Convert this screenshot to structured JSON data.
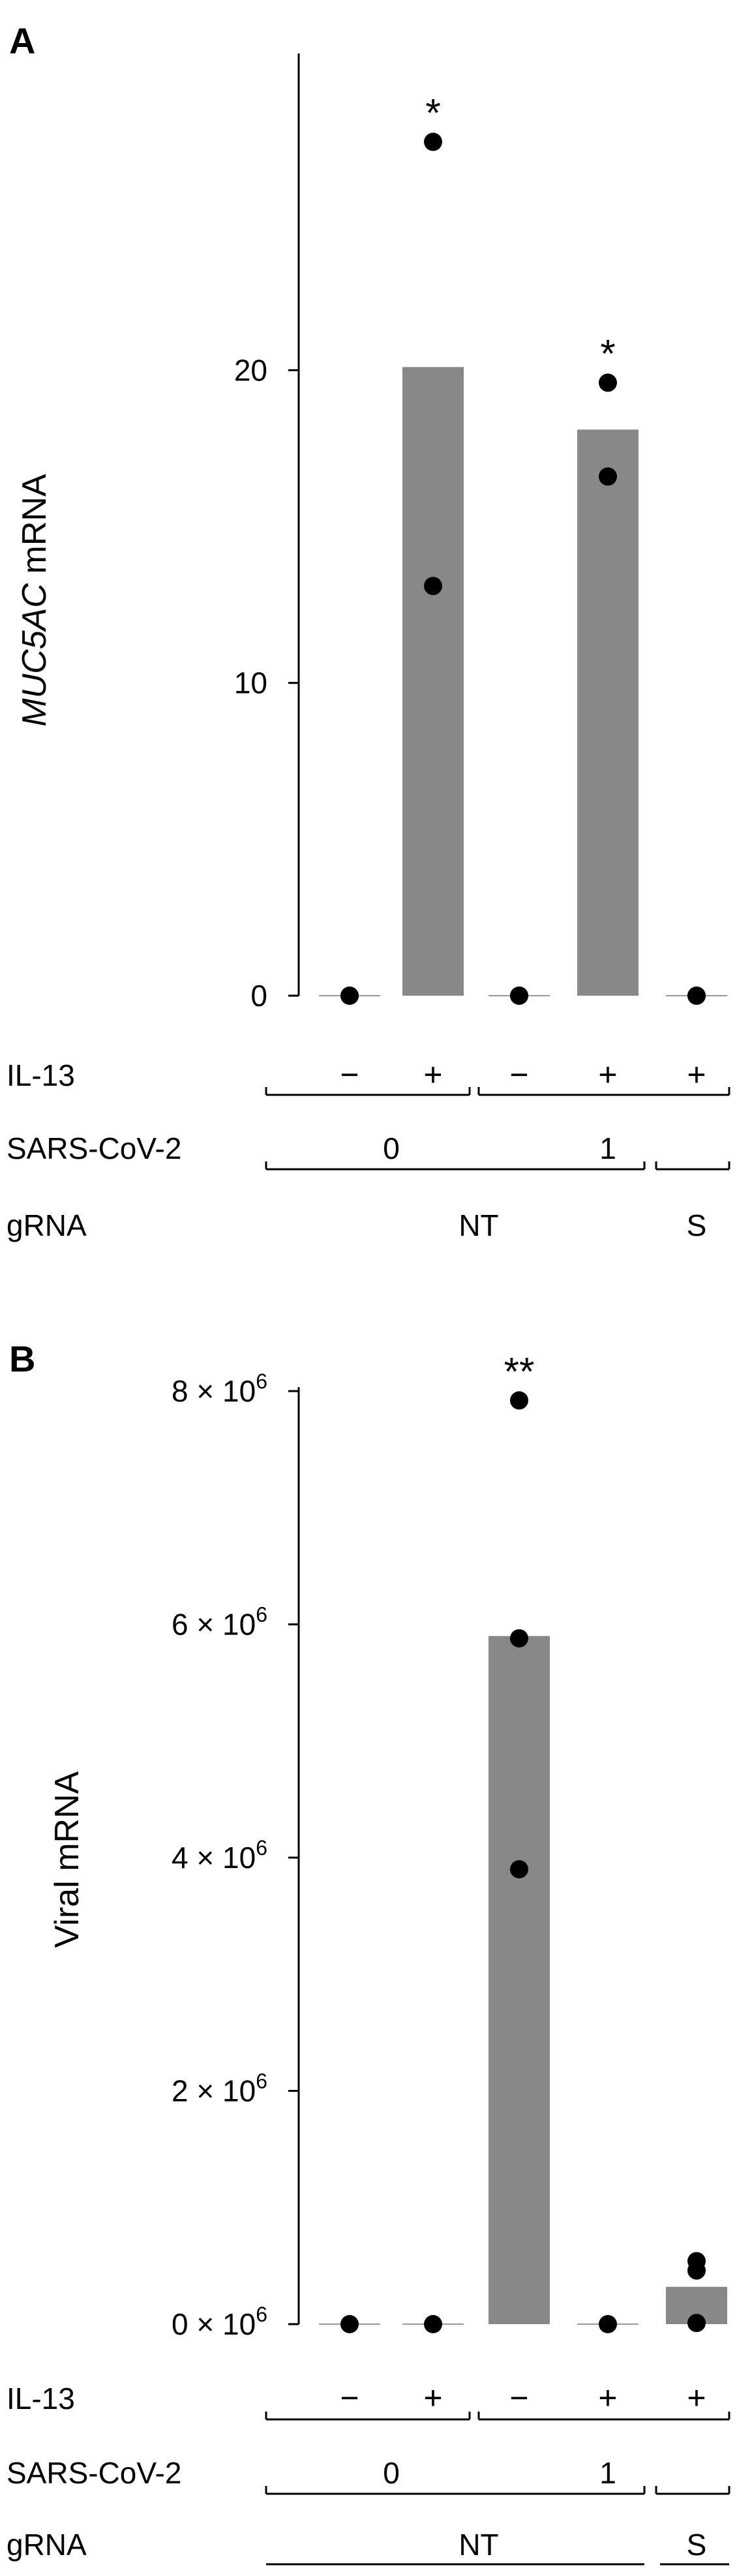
{
  "chart_data": [
    {
      "type": "bar",
      "panel": "A",
      "ylabel_italic": "MUC5AC",
      "ylabel_rest": " mRNA",
      "ylim": [
        0,
        30
      ],
      "yticks": [
        {
          "value": 0,
          "label": "0"
        },
        {
          "value": 10,
          "label": "10"
        },
        {
          "value": 20,
          "label": "20"
        }
      ],
      "categories": [
        "NT / 0 / −",
        "NT / 0 / +",
        "NT / 1 / −",
        "NT / 1 / +",
        "S / 1 / +"
      ],
      "bar_color": "#888888",
      "values": [
        0,
        20.1,
        0,
        18.1,
        0
      ],
      "points": [
        [
          0,
          0
        ],
        [
          27.3,
          13.1
        ],
        [
          0,
          0
        ],
        [
          19.6,
          16.6
        ],
        [
          0,
          0
        ]
      ],
      "significance": [
        "",
        "*",
        "",
        "*",
        ""
      ],
      "rows": [
        {
          "label": "IL-13",
          "entries": [
            {
              "text": "−",
              "col": 0
            },
            {
              "text": "+",
              "col": 1
            },
            {
              "text": "−",
              "col": 2
            },
            {
              "text": "+",
              "col": 3
            },
            {
              "text": "+",
              "col": 4
            }
          ]
        },
        {
          "label": "SARS-CoV-2",
          "groups": [
            {
              "text": "0",
              "from": 0,
              "to": 1
            },
            {
              "text": "1",
              "from": 2,
              "to": 4
            }
          ]
        },
        {
          "label": "gRNA",
          "groups": [
            {
              "text": "NT",
              "from": 0,
              "to": 3
            },
            {
              "text": "S",
              "from": 4,
              "to": 4
            }
          ]
        }
      ]
    },
    {
      "type": "bar",
      "panel": "B",
      "ylabel": "Viral mRNA",
      "ylim": [
        0,
        8000000
      ],
      "yticks": [
        {
          "value": 0,
          "mantissa": "0 × 10",
          "exp": "6"
        },
        {
          "value": 2000000,
          "mantissa": "2 × 10",
          "exp": "6"
        },
        {
          "value": 4000000,
          "mantissa": "4 × 10",
          "exp": "6"
        },
        {
          "value": 6000000,
          "mantissa": "6 × 10",
          "exp": "6"
        },
        {
          "value": 8000000,
          "mantissa": "8 × 10",
          "exp": "6"
        }
      ],
      "categories": [
        "NT / 0 / −",
        "NT / 0 / +",
        "NT / 1 / −",
        "NT / 1 / +",
        "S / 1 / +"
      ],
      "bar_color": "#888888",
      "values": [
        0,
        0,
        5900000,
        0,
        320000
      ],
      "points": [
        [
          0
        ],
        [
          0
        ],
        [
          7920000,
          5880000,
          3900000
        ],
        [
          0
        ],
        [
          540000,
          460000,
          10000
        ]
      ],
      "significance": [
        "",
        "",
        "**",
        "",
        ""
      ],
      "rows": [
        {
          "label": "IL-13",
          "entries": [
            {
              "text": "−",
              "col": 0
            },
            {
              "text": "+",
              "col": 1
            },
            {
              "text": "−",
              "col": 2
            },
            {
              "text": "+",
              "col": 3
            },
            {
              "text": "+",
              "col": 4
            }
          ]
        },
        {
          "label": "SARS-CoV-2",
          "groups": [
            {
              "text": "0",
              "from": 0,
              "to": 1
            },
            {
              "text": "1",
              "from": 2,
              "to": 4
            }
          ]
        },
        {
          "label": "gRNA",
          "groups": [
            {
              "text": "NT",
              "from": 0,
              "to": 3
            },
            {
              "text": "S",
              "from": 4,
              "to": 4
            }
          ]
        }
      ]
    }
  ]
}
